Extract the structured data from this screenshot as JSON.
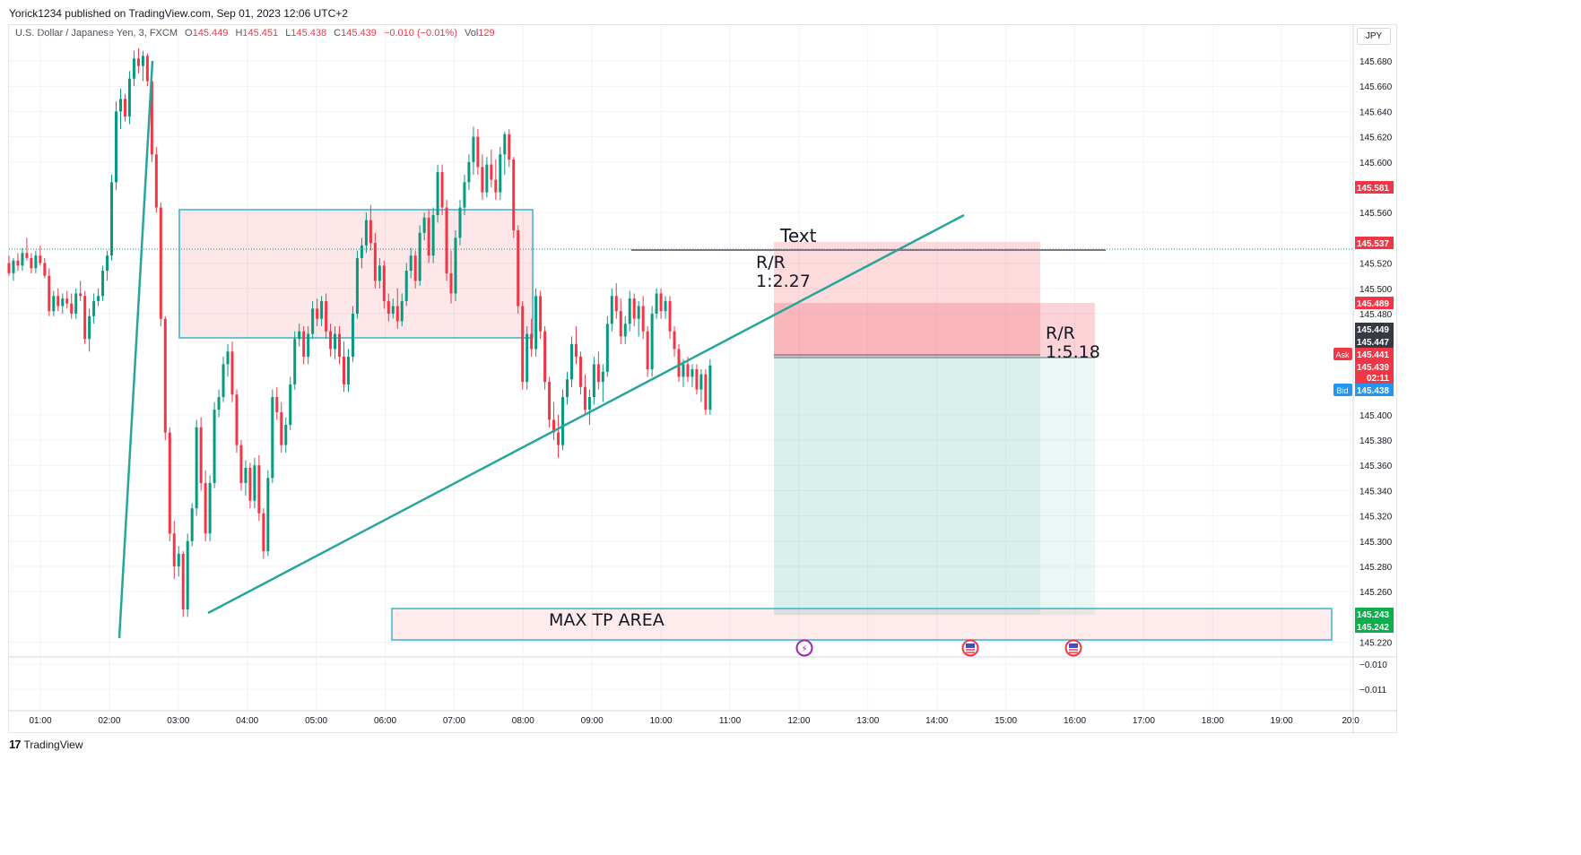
{
  "header": {
    "published_by": "Yorick1234 published on TradingView.com, Sep 01, 2023 12:06 UTC+2"
  },
  "legend": {
    "symbol": "U.S. Dollar / Japanese Yen, 3, FXCM",
    "o_label": "O",
    "o_value": "145.449",
    "h_label": "H",
    "h_value": "145.451",
    "l_label": "L",
    "l_value": "145.438",
    "c_label": "C",
    "c_value": "145.439",
    "change": "−0.010 (−0.01%)",
    "vol_label": "Vol",
    "vol_value": "129"
  },
  "currency_button": "JPY",
  "footer": {
    "logo": "17",
    "brand": "TradingView"
  },
  "colors": {
    "up": "#089981",
    "down": "#f23645",
    "trend": "#26a69a",
    "zone_border": "#36b3c9",
    "tp_green": "#0bb04a",
    "bid": "#2196f3"
  },
  "icons": [
    "flash-event-icon",
    "us-flag-event-icon",
    "us-flag-event-icon"
  ],
  "chart_data": {
    "type": "candlestick",
    "x_ticks": [
      "01:00",
      "02:00",
      "03:00",
      "04:00",
      "05:00",
      "06:00",
      "07:00",
      "08:00",
      "09:00",
      "10:00",
      "11:00",
      "12:00",
      "13:00",
      "14:00",
      "15:00",
      "16:00",
      "17:00",
      "18:00",
      "19:00",
      "20:0"
    ],
    "y_ticks": [
      "145.680",
      "145.660",
      "145.640",
      "145.620",
      "145.600",
      "145.560",
      "145.520",
      "145.500",
      "145.480",
      "145.400",
      "145.380",
      "145.360",
      "145.340",
      "145.320",
      "145.300",
      "145.280",
      "145.260",
      "145.220"
    ],
    "ylim": [
      145.215,
      145.69
    ],
    "sub_pane_ticks": [
      "−0.010",
      "−0.011"
    ],
    "price_badges": [
      {
        "label": "",
        "value": "145.581",
        "kind": "red"
      },
      {
        "label": "",
        "value": "145.537",
        "kind": "red"
      },
      {
        "label": "",
        "value": "145.489",
        "kind": "red"
      },
      {
        "label": "",
        "value": "145.449",
        "kind": "dark"
      },
      {
        "label": "",
        "value": "145.447",
        "kind": "dark"
      },
      {
        "label": "Ask",
        "value": "145.441",
        "kind": "red"
      },
      {
        "label": "",
        "value": "145.439",
        "kind": "red"
      },
      {
        "label": "",
        "value": "02:11",
        "kind": "red"
      },
      {
        "label": "Bid",
        "value": "145.438",
        "kind": "blue"
      },
      {
        "label": "",
        "value": "145.243",
        "kind": "green"
      },
      {
        "label": "",
        "value": "145.242",
        "kind": "green"
      }
    ],
    "annotations": {
      "text_label": "Text",
      "rr1_line1": "R/R",
      "rr1_line2": "1:2.27",
      "rr2_line1": "R/R",
      "rr2_line2": "1:5.18",
      "tp_area": "MAX TP AREA"
    },
    "candles": [
      [
        145.52,
        145.526,
        145.51,
        145.512
      ],
      [
        145.512,
        145.524,
        145.506,
        145.522
      ],
      [
        145.522,
        145.528,
        145.514,
        145.518
      ],
      [
        145.518,
        145.532,
        145.514,
        145.528
      ],
      [
        145.528,
        145.54,
        145.522,
        145.524
      ],
      [
        145.524,
        145.528,
        145.512,
        145.516
      ],
      [
        145.516,
        145.53,
        145.512,
        145.526
      ],
      [
        145.526,
        145.534,
        145.518,
        145.52
      ],
      [
        145.52,
        145.524,
        145.508,
        145.51
      ],
      [
        145.51,
        145.516,
        145.478,
        145.482
      ],
      [
        145.482,
        145.498,
        145.478,
        145.494
      ],
      [
        145.494,
        145.5,
        145.482,
        145.486
      ],
      [
        145.486,
        145.496,
        145.48,
        145.492
      ],
      [
        145.492,
        145.498,
        145.484,
        145.488
      ],
      [
        145.488,
        145.496,
        145.476,
        145.48
      ],
      [
        145.48,
        145.5,
        145.476,
        145.496
      ],
      [
        145.496,
        145.506,
        145.49,
        145.494
      ],
      [
        145.494,
        145.498,
        145.456,
        145.46
      ],
      [
        145.46,
        145.484,
        145.45,
        145.478
      ],
      [
        145.478,
        145.496,
        145.472,
        145.49
      ],
      [
        145.49,
        145.5,
        145.486,
        145.494
      ],
      [
        145.494,
        145.518,
        145.49,
        145.514
      ],
      [
        145.514,
        145.53,
        145.506,
        145.526
      ],
      [
        145.526,
        145.59,
        145.522,
        145.584
      ],
      [
        145.584,
        145.648,
        145.578,
        145.64
      ],
      [
        145.64,
        145.658,
        145.626,
        145.65
      ],
      [
        145.65,
        145.654,
        145.632,
        145.636
      ],
      [
        145.636,
        145.672,
        145.63,
        145.666
      ],
      [
        145.666,
        145.688,
        145.66,
        145.682
      ],
      [
        145.682,
        145.69,
        145.67,
        145.676
      ],
      [
        145.676,
        145.688,
        145.664,
        145.684
      ],
      [
        145.684,
        145.686,
        145.66,
        145.664
      ],
      [
        145.664,
        145.666,
        145.6,
        145.606
      ],
      [
        145.606,
        145.612,
        145.56,
        145.564
      ],
      [
        145.564,
        145.568,
        145.47,
        145.476
      ],
      [
        145.476,
        145.478,
        145.38,
        145.386
      ],
      [
        145.386,
        145.39,
        145.3,
        145.306
      ],
      [
        145.306,
        145.316,
        145.27,
        145.28
      ],
      [
        145.28,
        145.296,
        145.272,
        145.29
      ],
      [
        145.29,
        145.292,
        145.24,
        145.246
      ],
      [
        145.246,
        145.306,
        145.24,
        145.3
      ],
      [
        145.3,
        145.33,
        145.296,
        145.326
      ],
      [
        145.326,
        145.396,
        145.32,
        145.39
      ],
      [
        145.39,
        145.398,
        145.34,
        145.346
      ],
      [
        145.346,
        145.356,
        145.3,
        145.306
      ],
      [
        145.306,
        145.352,
        145.3,
        145.346
      ],
      [
        145.346,
        145.41,
        145.342,
        145.404
      ],
      [
        145.404,
        145.42,
        145.398,
        145.414
      ],
      [
        145.414,
        145.446,
        145.41,
        145.44
      ],
      [
        145.44,
        145.456,
        145.43,
        145.45
      ],
      [
        145.45,
        145.458,
        145.41,
        145.416
      ],
      [
        145.416,
        145.42,
        145.37,
        145.376
      ],
      [
        145.376,
        145.38,
        145.34,
        145.346
      ],
      [
        145.346,
        145.364,
        145.336,
        145.358
      ],
      [
        145.358,
        145.362,
        145.326,
        145.332
      ],
      [
        145.332,
        145.366,
        145.326,
        145.36
      ],
      [
        145.36,
        145.368,
        145.316,
        145.322
      ],
      [
        145.322,
        145.326,
        145.286,
        145.292
      ],
      [
        145.292,
        145.356,
        145.288,
        145.35
      ],
      [
        145.35,
        145.42,
        145.346,
        145.414
      ],
      [
        145.414,
        145.422,
        145.396,
        145.402
      ],
      [
        145.402,
        145.41,
        145.37,
        145.376
      ],
      [
        145.376,
        145.398,
        145.37,
        145.392
      ],
      [
        145.392,
        145.43,
        145.388,
        145.424
      ],
      [
        145.424,
        145.466,
        145.42,
        145.46
      ],
      [
        145.46,
        145.472,
        145.454,
        145.466
      ],
      [
        145.466,
        145.47,
        145.44,
        145.446
      ],
      [
        145.446,
        145.47,
        145.44,
        145.464
      ],
      [
        145.464,
        145.49,
        145.46,
        145.484
      ],
      [
        145.484,
        145.492,
        145.47,
        145.476
      ],
      [
        145.476,
        145.494,
        145.47,
        145.49
      ],
      [
        145.49,
        145.496,
        145.46,
        145.466
      ],
      [
        145.466,
        145.472,
        145.446,
        145.452
      ],
      [
        145.452,
        145.47,
        145.444,
        145.464
      ],
      [
        145.464,
        145.47,
        145.44,
        145.446
      ],
      [
        145.446,
        145.458,
        145.418,
        145.424
      ],
      [
        145.424,
        145.452,
        145.418,
        145.446
      ],
      [
        145.446,
        145.486,
        145.442,
        145.48
      ],
      [
        145.48,
        145.53,
        145.476,
        145.524
      ],
      [
        145.524,
        145.54,
        145.516,
        145.534
      ],
      [
        145.534,
        145.56,
        145.528,
        145.554
      ],
      [
        145.554,
        145.566,
        145.53,
        145.536
      ],
      [
        145.536,
        145.544,
        145.5,
        145.506
      ],
      [
        145.506,
        145.524,
        145.5,
        145.518
      ],
      [
        145.518,
        145.522,
        145.484,
        145.49
      ],
      [
        145.49,
        145.496,
        145.474,
        145.48
      ],
      [
        145.48,
        145.492,
        145.476,
        145.486
      ],
      [
        145.486,
        145.5,
        145.468,
        145.474
      ],
      [
        145.474,
        145.496,
        145.47,
        145.49
      ],
      [
        145.49,
        145.52,
        145.486,
        145.514
      ],
      [
        145.514,
        145.532,
        145.508,
        145.526
      ],
      [
        145.526,
        145.53,
        145.5,
        145.506
      ],
      [
        145.506,
        145.55,
        145.502,
        145.544
      ],
      [
        145.544,
        145.56,
        145.538,
        145.556
      ],
      [
        145.556,
        145.562,
        145.52,
        145.526
      ],
      [
        145.526,
        145.564,
        145.52,
        145.558
      ],
      [
        145.558,
        145.598,
        145.552,
        145.592
      ],
      [
        145.592,
        145.598,
        145.558,
        145.564
      ],
      [
        145.564,
        145.57,
        145.506,
        145.512
      ],
      [
        145.512,
        145.53,
        145.488,
        145.496
      ],
      [
        145.496,
        145.546,
        145.49,
        145.54
      ],
      [
        145.54,
        145.57,
        145.534,
        145.564
      ],
      [
        145.564,
        145.59,
        145.558,
        145.584
      ],
      [
        145.584,
        145.606,
        145.578,
        145.6
      ],
      [
        145.6,
        145.628,
        145.59,
        145.62
      ],
      [
        145.62,
        145.626,
        145.59,
        145.596
      ],
      [
        145.596,
        145.606,
        145.57,
        145.576
      ],
      [
        145.576,
        145.604,
        145.572,
        145.598
      ],
      [
        145.598,
        145.61,
        145.58,
        145.586
      ],
      [
        145.586,
        145.602,
        145.57,
        145.576
      ],
      [
        145.576,
        145.612,
        145.57,
        145.606
      ],
      [
        145.606,
        145.624,
        145.59,
        145.622
      ],
      [
        145.622,
        145.626,
        145.596,
        145.602
      ],
      [
        145.602,
        145.604,
        145.54,
        145.546
      ],
      [
        145.546,
        145.55,
        145.48,
        145.486
      ],
      [
        145.486,
        145.49,
        145.42,
        145.426
      ],
      [
        145.426,
        145.47,
        145.42,
        145.464
      ],
      [
        145.464,
        145.476,
        145.446,
        145.452
      ],
      [
        145.452,
        145.5,
        145.446,
        145.494
      ],
      [
        145.494,
        145.498,
        145.46,
        145.466
      ],
      [
        145.466,
        145.47,
        145.42,
        145.426
      ],
      [
        145.426,
        145.43,
        145.39,
        145.396
      ],
      [
        145.396,
        145.41,
        145.38,
        145.386
      ],
      [
        145.386,
        145.4,
        145.366,
        145.376
      ],
      [
        145.376,
        145.42,
        145.372,
        145.414
      ],
      [
        145.414,
        145.434,
        145.408,
        145.428
      ],
      [
        145.428,
        145.462,
        145.422,
        145.456
      ],
      [
        145.456,
        145.47,
        145.44,
        145.446
      ],
      [
        145.446,
        145.45,
        145.416,
        145.422
      ],
      [
        145.422,
        145.432,
        145.4,
        145.404
      ],
      [
        145.404,
        145.42,
        145.392,
        145.414
      ],
      [
        145.414,
        145.446,
        145.408,
        145.44
      ],
      [
        145.44,
        145.45,
        145.42,
        145.426
      ],
      [
        145.426,
        145.44,
        145.41,
        145.434
      ],
      [
        145.434,
        145.478,
        145.43,
        145.472
      ],
      [
        145.472,
        145.5,
        145.466,
        145.494
      ],
      [
        145.494,
        145.504,
        145.476,
        145.482
      ],
      [
        145.482,
        145.492,
        145.456,
        145.462
      ],
      [
        145.462,
        145.478,
        145.456,
        145.472
      ],
      [
        145.472,
        145.498,
        145.466,
        145.492
      ],
      [
        145.492,
        145.496,
        145.47,
        145.476
      ],
      [
        145.476,
        145.49,
        145.462,
        145.486
      ],
      [
        145.486,
        145.494,
        145.46,
        145.466
      ],
      [
        145.466,
        145.47,
        145.43,
        145.436
      ],
      [
        145.436,
        145.486,
        145.43,
        145.48
      ],
      [
        145.48,
        145.5,
        145.476,
        145.496
      ],
      [
        145.496,
        145.5,
        145.476,
        145.482
      ],
      [
        145.482,
        145.494,
        145.476,
        145.49
      ],
      [
        145.49,
        145.494,
        145.46,
        145.466
      ],
      [
        145.466,
        145.47,
        145.446,
        145.452
      ],
      [
        145.452,
        145.456,
        145.426,
        145.43
      ],
      [
        145.43,
        145.444,
        145.422,
        145.44
      ],
      [
        145.44,
        145.446,
        145.426,
        145.43
      ],
      [
        145.43,
        145.44,
        145.422,
        145.436
      ],
      [
        145.436,
        145.44,
        145.416,
        145.42
      ],
      [
        145.42,
        145.436,
        145.41,
        145.432
      ],
      [
        145.432,
        145.436,
        145.4,
        145.404
      ],
      [
        145.404,
        145.444,
        145.4,
        145.439
      ]
    ]
  }
}
